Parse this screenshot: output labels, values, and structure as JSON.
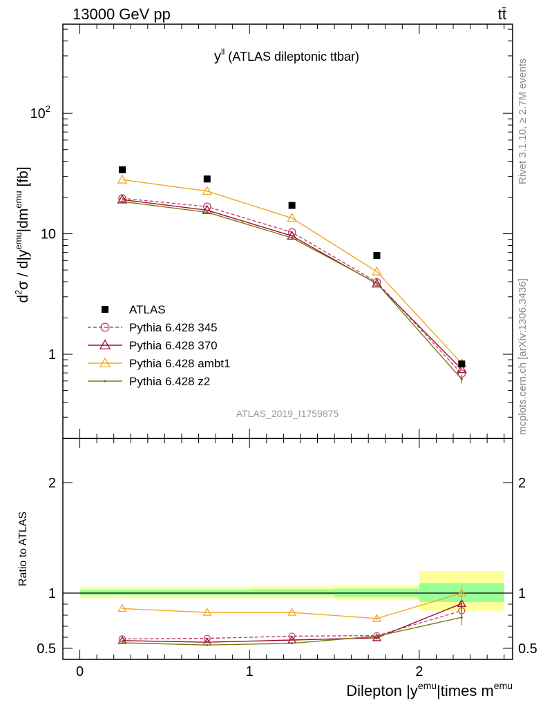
{
  "header": {
    "left": "13000 GeV pp",
    "right": "tt̄"
  },
  "side_labels": {
    "rivet": "Rivet 3.1.10, ≥ 2.7M events",
    "mcplots": "mcplots.cern.ch [arXiv:1306.3436]"
  },
  "chart_data": [
    {
      "type": "line",
      "panel": "main",
      "title": "y^ll (ATLAS dileptonic ttbar)",
      "title_main": "y",
      "title_sup": "ll",
      "title_rest": " (ATLAS dileptonic ttbar)",
      "watermark": "ATLAS_2019_I1759875",
      "ylabel": "d²σ / d|y^emu|dm^emu [fb]",
      "yscale": "log",
      "xlim": [
        -0.1,
        2.55
      ],
      "ylim": [
        0.2,
        550
      ],
      "yticks": [
        1,
        10,
        100
      ],
      "ytick_labels": [
        "1",
        "10",
        "10^2"
      ],
      "x": [
        0.25,
        0.75,
        1.25,
        1.75,
        2.25
      ],
      "series": [
        {
          "name": "ATLAS",
          "color": "#000000",
          "marker": "filled-square",
          "line": "none",
          "values": [
            34.0,
            28.5,
            17.2,
            6.6,
            0.83
          ]
        },
        {
          "name": "Pythia 6.428 345",
          "color": "#c0426f",
          "marker": "open-circle",
          "line": "dashed",
          "values": [
            19.7,
            16.8,
            10.3,
            3.97,
            0.69
          ]
        },
        {
          "name": "Pythia 6.428 370",
          "color": "#9b1030",
          "marker": "open-triangle",
          "line": "solid",
          "values": [
            19.2,
            15.7,
            9.6,
            3.85,
            0.75
          ]
        },
        {
          "name": "Pythia 6.428 ambt1",
          "color": "#f5a623",
          "marker": "open-triangle",
          "line": "solid",
          "values": [
            28.1,
            22.6,
            13.5,
            4.85,
            0.84
          ]
        },
        {
          "name": "Pythia 6.428 z2",
          "color": "#7a7a10",
          "marker": "dot",
          "line": "solid",
          "values": [
            18.5,
            15.1,
            9.25,
            3.88,
            0.62
          ]
        }
      ]
    },
    {
      "type": "line",
      "panel": "ratio",
      "ylabel": "Ratio to ATLAS",
      "xlabel": "Dilepton |y^emu|times m^emu",
      "xlim": [
        -0.1,
        2.55
      ],
      "ylim": [
        0.4,
        2.4
      ],
      "yticks": [
        0.5,
        1,
        2
      ],
      "ytick_labels": [
        "0.5",
        "1",
        "2"
      ],
      "xticks": [
        0,
        1,
        2
      ],
      "xtick_labels": [
        "0",
        "1",
        "2"
      ],
      "x": [
        0.25,
        0.75,
        1.25,
        1.75,
        2.25
      ],
      "bins": [
        [
          0,
          0.5
        ],
        [
          0.5,
          1.0
        ],
        [
          1.0,
          1.5
        ],
        [
          1.5,
          2.0
        ],
        [
          2.0,
          2.5
        ]
      ],
      "band_stat": [
        [
          0.98,
          1.03
        ],
        [
          0.98,
          1.03
        ],
        [
          0.98,
          1.035
        ],
        [
          0.965,
          1.04
        ],
        [
          0.92,
          1.09
        ]
      ],
      "band_total": [
        [
          0.955,
          1.055
        ],
        [
          0.955,
          1.055
        ],
        [
          0.955,
          1.06
        ],
        [
          0.94,
          1.07
        ],
        [
          0.84,
          1.2
        ]
      ],
      "series": [
        {
          "name": "Pythia 6.428 345",
          "color": "#c0426f",
          "marker": "open-circle",
          "line": "dashed",
          "values": [
            0.585,
            0.59,
            0.61,
            0.615,
            0.84
          ]
        },
        {
          "name": "Pythia 6.428 370",
          "color": "#9b1030",
          "marker": "open-triangle",
          "line": "solid",
          "values": [
            0.57,
            0.555,
            0.575,
            0.595,
            0.905
          ]
        },
        {
          "name": "Pythia 6.428 ambt1",
          "color": "#f5a623",
          "marker": "open-triangle",
          "line": "solid",
          "values": [
            0.86,
            0.825,
            0.825,
            0.77,
            1.0
          ]
        },
        {
          "name": "Pythia 6.428 z2",
          "color": "#7a7a10",
          "marker": "dot",
          "line": "solid",
          "values": [
            0.55,
            0.53,
            0.545,
            0.61,
            0.78
          ]
        }
      ]
    }
  ]
}
